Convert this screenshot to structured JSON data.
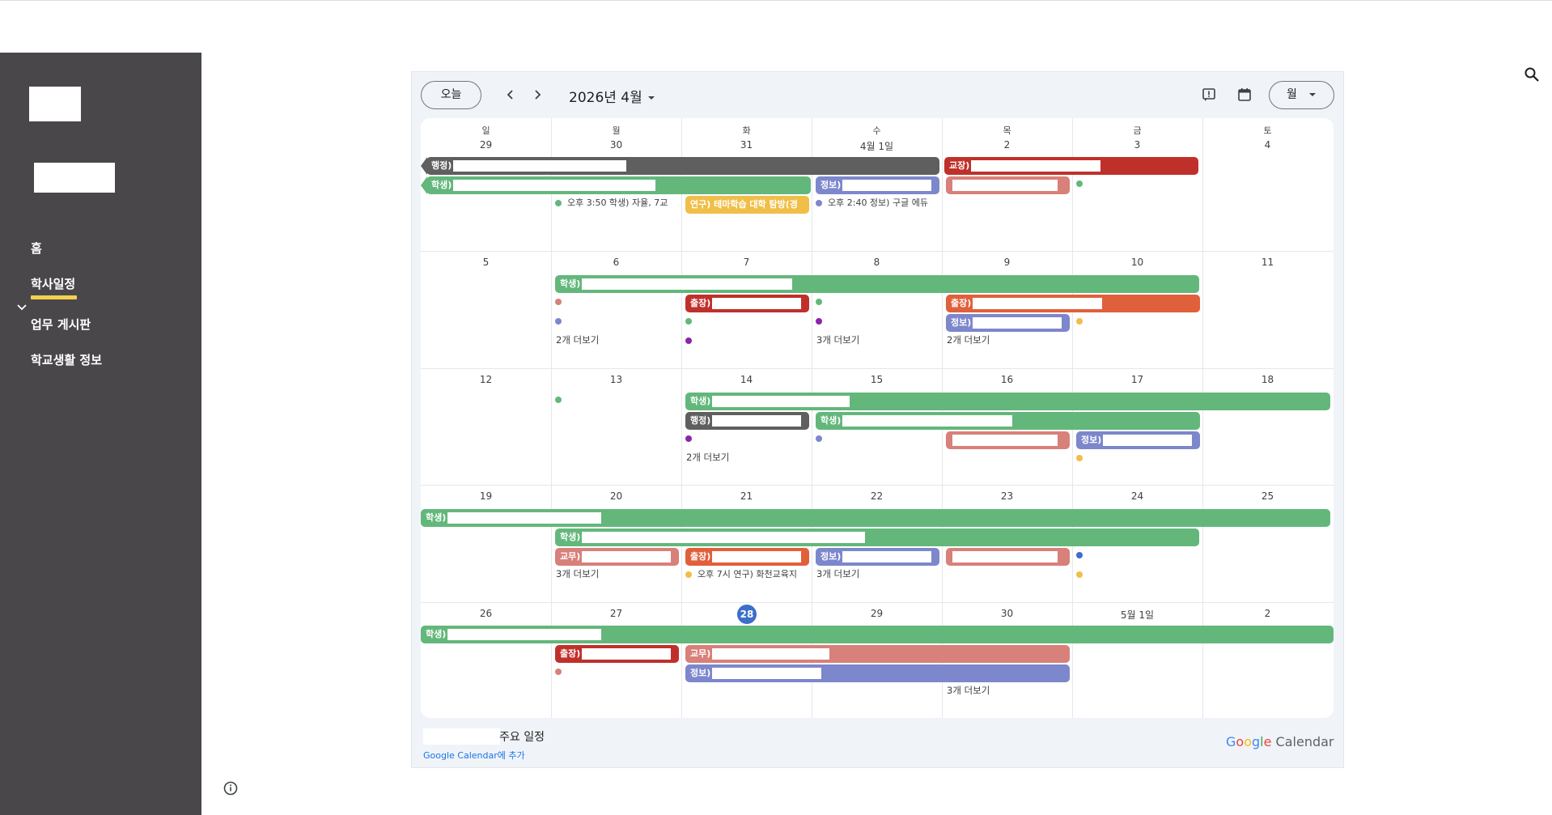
{
  "sidebar": {
    "nav": [
      {
        "label": "홈",
        "name": "nav-home",
        "active": false
      },
      {
        "label": "학사일정",
        "name": "nav-academic-schedule",
        "active": true
      },
      {
        "label": "업무 게시판",
        "name": "nav-work-board",
        "active": false
      },
      {
        "label": "학교생활 정보",
        "name": "nav-school-life-info",
        "active": false
      }
    ]
  },
  "calendar": {
    "today_button": "오늘",
    "month_label": "2026년 4월",
    "view_select": "월",
    "weekdays": [
      "일",
      "월",
      "화",
      "수",
      "목",
      "금",
      "토"
    ],
    "weeks": [
      [
        "29",
        "30",
        "31",
        "4월 1일",
        "2",
        "3",
        "4"
      ],
      [
        "5",
        "6",
        "7",
        "8",
        "9",
        "10",
        "11"
      ],
      [
        "12",
        "13",
        "14",
        "15",
        "16",
        "17",
        "18"
      ],
      [
        "19",
        "20",
        "21",
        "22",
        "23",
        "24",
        "25"
      ],
      [
        "26",
        "27",
        "28",
        "29",
        "30",
        "5월 1일",
        "2"
      ]
    ],
    "today_date": "28",
    "events": {
      "w1_admin": "행정)",
      "w1_principal": "교장)",
      "w1_student": "학생)",
      "w1_info": "정보)",
      "w1_timed_mon": "오후 3:50 학생) 자율, 7교",
      "w1_research": "연구) 테마학습 대학 탐방(경",
      "w1_timed_wed": "오후 2:40 정보) 구글 에듀",
      "w2_student": "학생)",
      "w2_trip_tue": "출장)",
      "w2_trip_thu": "출장)",
      "w2_info_thu": "정보)",
      "w3_student_tue": "학생)",
      "w3_admin": "행정)",
      "w3_student_wed": "학생)",
      "w3_info_fri": "정보)",
      "w4_student_sun": "학생)",
      "w4_student_mon": "학생)",
      "w4_teach": "교무)",
      "w4_trip_tue": "출장)",
      "w4_info_wed": "정보)",
      "w4_timed_tue": "오후 7시 연구) 화천교육지",
      "w5_student": "학생)",
      "w5_trip": "출장)",
      "w5_teach": "교무)",
      "w5_info": "정보)"
    },
    "more": {
      "w2_mon": "2개 더보기",
      "w2_wed": "3개 더보기",
      "w2_thu": "2개 더보기",
      "w3_tue": "2개 더보기",
      "w4_mon": "3개 더보기",
      "w4_wed": "3개 더보기",
      "w5_thu": "3개 더보기"
    },
    "footer": {
      "title": "주요 일정",
      "add_link": "Google Calendar에 추가"
    },
    "brand": {
      "g1": "G",
      "g2": "o",
      "g3": "o",
      "g4": "g",
      "g5": "l",
      "g6": "e",
      "suffix": "Calendar"
    }
  },
  "colors": {
    "sidebar": "#4a474b",
    "green": "#63b77b",
    "gray": "#5f5f5f",
    "red": "#c0302b",
    "orange": "#e0603b",
    "salmon": "#d8807a",
    "purple": "#7d87cc",
    "yellow": "#f1be48",
    "today": "#3c6ecb"
  }
}
